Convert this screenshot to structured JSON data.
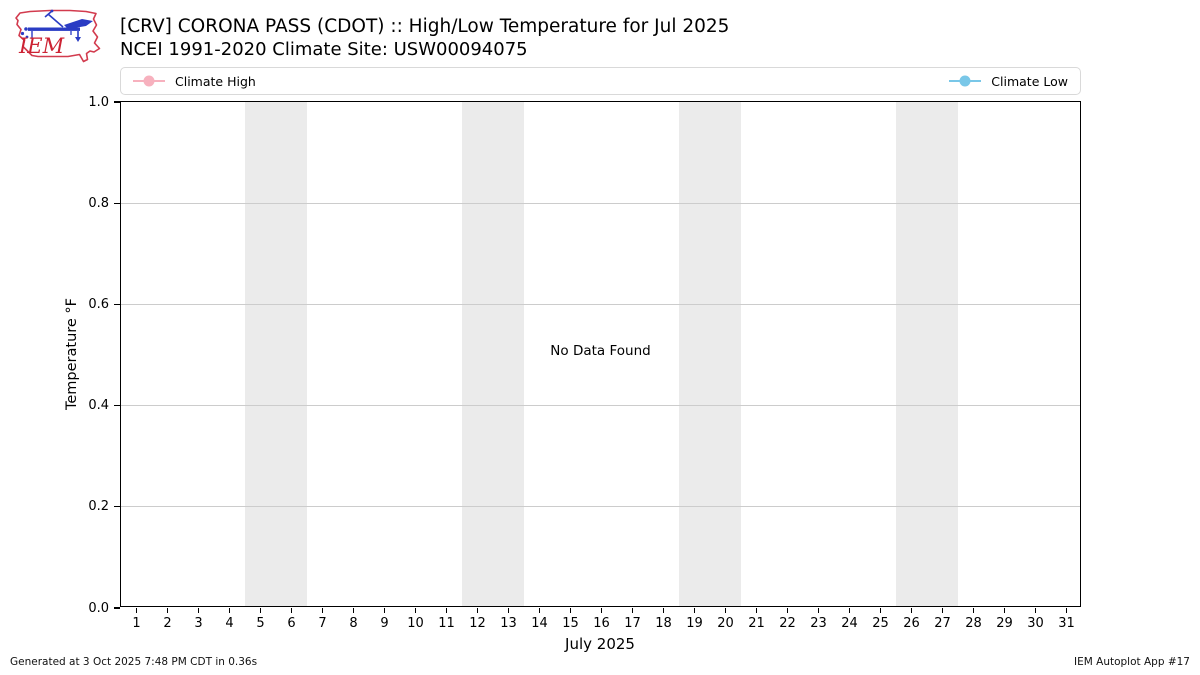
{
  "header": {
    "title": "[CRV] CORONA PASS (CDOT) :: High/Low Temperature for Jul 2025",
    "subtitle": "NCEI 1991-2020 Climate Site: USW00094075",
    "logo_text": "IEM"
  },
  "legend": {
    "items": [
      {
        "label": "Climate High",
        "color": "#f7b1be"
      },
      {
        "label": "Climate Low",
        "color": "#79c7e8"
      }
    ]
  },
  "chart_data": {
    "type": "line",
    "title": "[CRV] CORONA PASS (CDOT) :: High/Low Temperature for Jul 2025",
    "subtitle": "NCEI 1991-2020 Climate Site: USW00094075",
    "xlabel": "July 2025",
    "ylabel": "Temperature °F",
    "ylim": [
      0.0,
      1.0
    ],
    "xlim": [
      0.5,
      31.5
    ],
    "x_ticks": [
      "1",
      "2",
      "3",
      "4",
      "5",
      "6",
      "7",
      "8",
      "9",
      "10",
      "11",
      "12",
      "13",
      "14",
      "15",
      "16",
      "17",
      "18",
      "19",
      "20",
      "21",
      "22",
      "23",
      "24",
      "25",
      "26",
      "27",
      "28",
      "29",
      "30",
      "31"
    ],
    "y_ticks": [
      "0.0",
      "0.2",
      "0.4",
      "0.6",
      "0.8",
      "1.0"
    ],
    "grid": true,
    "legend_position": "top",
    "weekend_bands": [
      [
        5,
        6
      ],
      [
        12,
        13
      ],
      [
        19,
        20
      ],
      [
        26,
        27
      ]
    ],
    "series": [
      {
        "name": "Climate High",
        "color": "#f7b1be",
        "values": []
      },
      {
        "name": "Climate Low",
        "color": "#79c7e8",
        "values": []
      }
    ],
    "no_data_message": "No Data Found"
  },
  "colors": {
    "band": "#ebebeb",
    "grid": "#cccccc",
    "spine": "#000000",
    "logo_red": "#d23b4e",
    "logo_blue": "#2a3cc4"
  },
  "footer": {
    "left": "Generated at 3 Oct 2025 7:48 PM CDT in 0.36s",
    "right": "IEM Autoplot App #17"
  }
}
